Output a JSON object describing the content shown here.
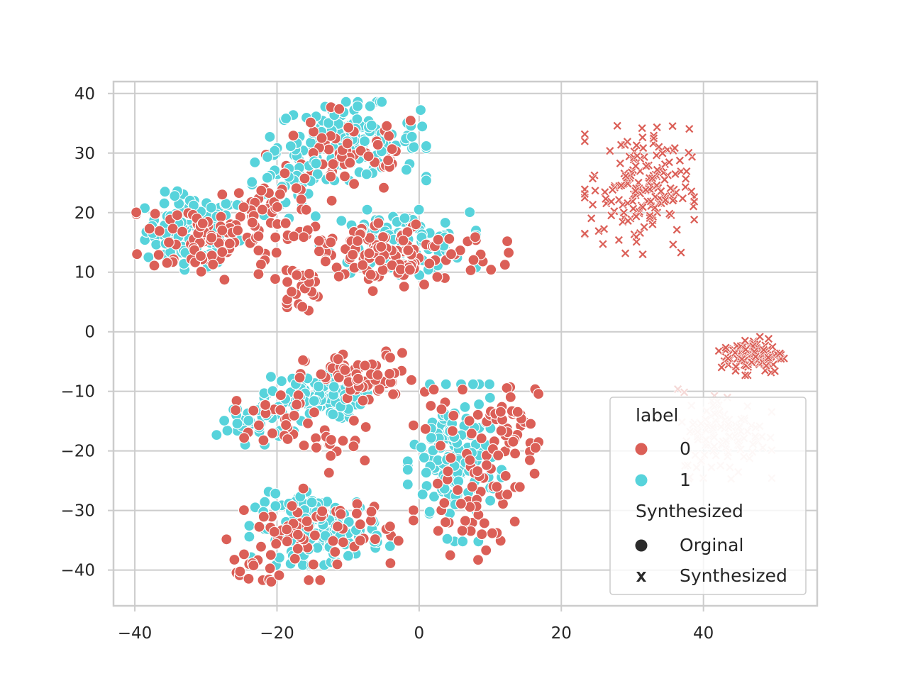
{
  "chart_data": {
    "type": "scatter",
    "title": "",
    "xlabel": "",
    "ylabel": "",
    "xlim": [
      -43,
      56
    ],
    "ylim": [
      -46,
      42
    ],
    "grid": true,
    "x_ticks": [
      -40,
      -20,
      0,
      20,
      40
    ],
    "y_ticks": [
      40,
      30,
      20,
      10,
      0,
      -10,
      -20,
      -30,
      -40
    ],
    "x_tick_labels": [
      "−40",
      "−20",
      "0",
      "20",
      "40"
    ],
    "y_tick_labels": [
      "40",
      "30",
      "20",
      "10",
      "0",
      "−10",
      "−20",
      "−30",
      "−40"
    ],
    "colors": {
      "label_0": "#db5f57",
      "label_1": "#57d3db",
      "synth_light": "#f5d9d7",
      "grid": "#cccccc",
      "legend_marker": "#2b2b2b"
    },
    "legend": {
      "position": "lower-right",
      "hue_title": "label",
      "hue_items": [
        "0",
        "1"
      ],
      "style_title": "Synthesized",
      "style_items": [
        "Orginal",
        "Synthesized"
      ]
    },
    "clusters": [
      {
        "label": "1",
        "marker": "circle",
        "center": [
          -32,
          17
        ],
        "spread": [
          3.2,
          3.0
        ],
        "n": 110
      },
      {
        "label": "0",
        "marker": "circle",
        "center": [
          -31,
          16
        ],
        "spread": [
          4.0,
          3.5
        ],
        "n": 70
      },
      {
        "label": "1",
        "marker": "circle",
        "center": [
          -10,
          32
        ],
        "spread": [
          5.0,
          3.0
        ],
        "n": 150
      },
      {
        "label": "0",
        "marker": "circle",
        "center": [
          -10,
          30
        ],
        "spread": [
          5.5,
          3.5
        ],
        "n": 60
      },
      {
        "label": "1",
        "marker": "circle",
        "center": [
          -19,
          24
        ],
        "spread": [
          3.0,
          3.0
        ],
        "n": 40
      },
      {
        "label": "0",
        "marker": "circle",
        "center": [
          -20,
          20
        ],
        "spread": [
          3.5,
          3.0
        ],
        "n": 45
      },
      {
        "label": "1",
        "marker": "circle",
        "center": [
          -3,
          15
        ],
        "spread": [
          5.0,
          2.5
        ],
        "n": 110
      },
      {
        "label": "0",
        "marker": "circle",
        "center": [
          -5,
          13
        ],
        "spread": [
          8.0,
          2.8
        ],
        "n": 140
      },
      {
        "label": "0",
        "marker": "circle",
        "center": [
          -17,
          7
        ],
        "spread": [
          1.5,
          2.5
        ],
        "n": 20
      },
      {
        "label": "1",
        "marker": "circle",
        "center": [
          -15,
          -11
        ],
        "spread": [
          3.5,
          1.8
        ],
        "n": 90
      },
      {
        "label": "0",
        "marker": "circle",
        "center": [
          -8,
          -8
        ],
        "spread": [
          4.0,
          2.2
        ],
        "n": 70
      },
      {
        "label": "1",
        "marker": "circle",
        "center": [
          -23,
          -15
        ],
        "spread": [
          2.5,
          1.8
        ],
        "n": 35
      },
      {
        "label": "0",
        "marker": "circle",
        "center": [
          -20,
          -14
        ],
        "spread": [
          3.0,
          2.0
        ],
        "n": 25
      },
      {
        "label": "0",
        "marker": "circle",
        "center": [
          -13,
          -19
        ],
        "spread": [
          2.5,
          2.5
        ],
        "n": 20
      },
      {
        "label": "1",
        "marker": "circle",
        "center": [
          -14,
          -33
        ],
        "spread": [
          4.5,
          2.8
        ],
        "n": 140
      },
      {
        "label": "0",
        "marker": "circle",
        "center": [
          -15,
          -34
        ],
        "spread": [
          5.5,
          3.5
        ],
        "n": 70
      },
      {
        "label": "0",
        "marker": "circle",
        "center": [
          -23,
          -40
        ],
        "spread": [
          1.5,
          1.2
        ],
        "n": 12
      },
      {
        "label": "1",
        "marker": "circle",
        "center": [
          5,
          -22
        ],
        "spread": [
          3.0,
          6.0
        ],
        "n": 150
      },
      {
        "label": "0",
        "marker": "circle",
        "center": [
          8,
          -24
        ],
        "spread": [
          4.0,
          6.5
        ],
        "n": 80
      },
      {
        "label": "0",
        "marker": "circle",
        "center": [
          13,
          -14
        ],
        "spread": [
          1.8,
          3.0
        ],
        "n": 30
      },
      {
        "label": "0",
        "marker": "x",
        "center": [
          31,
          24
        ],
        "spread": [
          3.5,
          5.0
        ],
        "n": 170
      },
      {
        "label": "0",
        "marker": "x",
        "center": [
          47,
          -4
        ],
        "spread": [
          2.2,
          1.5
        ],
        "n": 110
      },
      {
        "label": "0",
        "marker": "x",
        "center": [
          43,
          -17
        ],
        "spread": [
          3.0,
          3.5
        ],
        "n": 120,
        "muted": true
      }
    ]
  }
}
